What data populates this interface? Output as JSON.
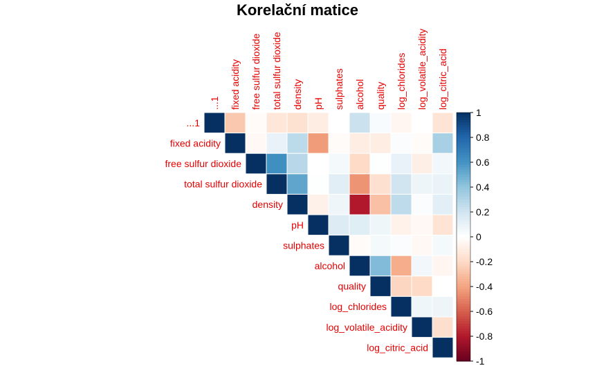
{
  "chart_data": {
    "type": "heatmap",
    "title": "Korelační matice",
    "variables": [
      "...1",
      "fixed acidity",
      "free sulfur dioxide",
      "total sulfur dioxide",
      "density",
      "pH",
      "sulphates",
      "alcohol",
      "quality",
      "log_chlorides",
      "log_volatile_acidity",
      "log_citric_acid"
    ],
    "matrix_layout": "upper triangle with diagonal",
    "matrix": [
      [
        1,
        -0.27,
        -0.02,
        -0.14,
        -0.16,
        -0.1,
        0,
        0.22,
        0.03,
        -0.05,
        0,
        -0.15
      ],
      [
        null,
        1,
        -0.04,
        0.1,
        0.27,
        -0.43,
        -0.02,
        -0.1,
        -0.1,
        0.02,
        -0.02,
        0.33
      ],
      [
        null,
        null,
        1,
        0.62,
        0.28,
        0,
        0.05,
        -0.2,
        0.01,
        0.1,
        -0.09,
        0.06
      ],
      [
        null,
        null,
        null,
        1,
        0.53,
        0.01,
        0.13,
        -0.45,
        -0.17,
        0.2,
        0.08,
        0.09
      ],
      [
        null,
        null,
        null,
        null,
        1,
        -0.08,
        0.07,
        -0.8,
        -0.3,
        0.26,
        0.02,
        0.12
      ],
      [
        null,
        null,
        null,
        null,
        null,
        1,
        0.15,
        0.14,
        0.07,
        -0.07,
        -0.04,
        -0.15
      ],
      [
        null,
        null,
        null,
        null,
        null,
        null,
        1,
        -0.02,
        0.05,
        0.02,
        -0.04,
        0.05
      ],
      [
        null,
        null,
        null,
        null,
        null,
        null,
        null,
        1,
        0.44,
        -0.37,
        0.06,
        -0.05
      ],
      [
        null,
        null,
        null,
        null,
        null,
        null,
        null,
        null,
        1,
        -0.22,
        -0.2,
        0
      ],
      [
        null,
        null,
        null,
        null,
        null,
        null,
        null,
        null,
        null,
        1,
        0.07,
        0.08
      ],
      [
        null,
        null,
        null,
        null,
        null,
        null,
        null,
        null,
        null,
        null,
        1,
        -0.18
      ],
      [
        null,
        null,
        null,
        null,
        null,
        null,
        null,
        null,
        null,
        null,
        null,
        1
      ]
    ],
    "colorbar": {
      "range": [
        -1,
        1
      ],
      "ticks": [
        "1",
        "0.8",
        "0.6",
        "0.4",
        "0.2",
        "0",
        "-0.2",
        "-0.4",
        "-0.6",
        "-0.8",
        "-1"
      ],
      "colors": {
        "negative": "#67001f",
        "zero": "#ffffff",
        "positive": "#053061"
      }
    },
    "label_color": "#e60000"
  }
}
